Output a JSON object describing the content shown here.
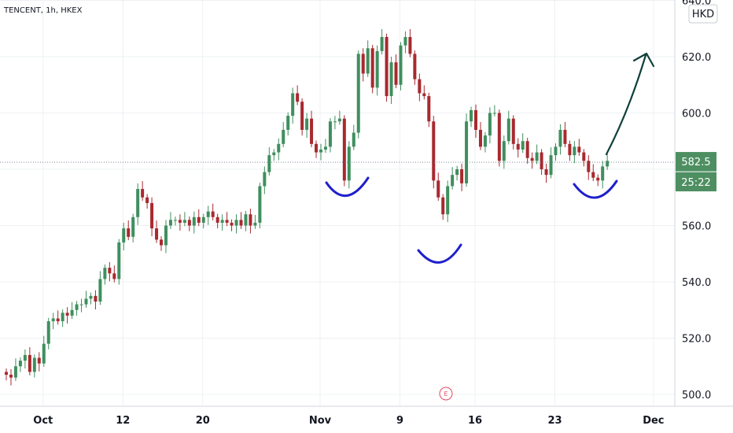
{
  "symbol_info": "TENCENT, 1h, HKEX",
  "currency": "HKD",
  "current_price_label": "582.5",
  "countdown": "25:22",
  "earnings_marker": "E",
  "colors": {
    "up": "#26a69a",
    "down": "#b7141b",
    "up_candle": "#3f8f5e",
    "down_candle": "#a8292f",
    "current_badge": "#4e8f62",
    "annotation_curve": "#1f1fcc",
    "annotation_arrow": "#10403a",
    "grid": "#eef0f3",
    "axis_text": "#131722",
    "earnings": "#e04b5f"
  },
  "chart_data": {
    "type": "candlestick",
    "title": "",
    "ylabel": "",
    "y_ticks": [
      "500.0",
      "520.0",
      "540.0",
      "560.0",
      "580.0",
      "600.0",
      "620.0",
      "640.0"
    ],
    "ylim": [
      497,
      642
    ],
    "x_ticks": [
      {
        "label": "Oct",
        "bar": 8
      },
      {
        "label": "12",
        "bar": 25
      },
      {
        "label": "20",
        "bar": 42
      },
      {
        "label": "Nov",
        "bar": 67
      },
      {
        "label": "9",
        "bar": 84
      },
      {
        "label": "16",
        "bar": 100
      },
      {
        "label": "23",
        "bar": 117
      },
      {
        "label": "Dec",
        "bar": 138
      }
    ],
    "grid": true,
    "close_series": [
      507,
      506,
      510,
      512,
      514,
      508,
      513,
      511,
      518,
      526,
      527,
      526,
      529,
      528,
      530,
      532,
      532,
      534,
      535,
      533,
      541,
      545,
      543,
      541,
      554,
      559,
      556,
      563,
      573,
      570,
      568,
      559,
      555,
      553,
      560,
      562,
      562,
      561,
      562,
      560,
      563,
      561,
      563,
      565,
      563,
      561,
      562,
      561,
      560,
      562,
      560,
      564,
      560,
      561,
      574,
      579,
      585,
      586,
      589,
      594,
      599,
      607,
      604,
      594,
      598,
      589,
      586,
      587,
      588,
      597,
      597,
      598,
      576,
      588,
      593,
      621,
      614,
      623,
      609,
      622,
      627,
      606,
      618,
      610,
      624,
      627,
      621,
      612,
      607,
      606,
      597,
      576,
      570,
      564,
      574,
      578,
      580,
      575,
      597,
      601,
      594,
      588,
      592,
      600,
      600,
      583,
      590,
      598,
      589,
      587,
      590,
      584,
      583,
      586,
      580,
      578,
      585,
      588,
      594,
      589,
      585,
      588,
      586,
      583,
      579,
      577,
      576,
      581,
      583
    ]
  },
  "annotations": {
    "rounded_bottoms": 3,
    "projection_arrow_target": 621
  }
}
